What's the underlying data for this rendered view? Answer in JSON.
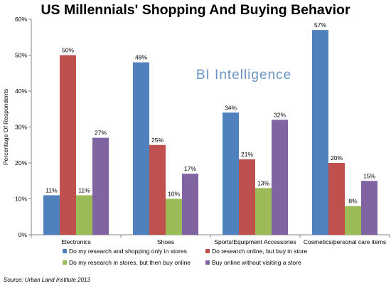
{
  "watermark": "BI Intelligence",
  "source": "Source: Urban Land Institute 2013",
  "chart_data": {
    "type": "bar",
    "title": "US Millennials' Shopping And Buying Behavior",
    "ylabel": "Percentage Of Respondents",
    "xlabel": "",
    "ylim": [
      0,
      60
    ],
    "yticks": [
      "0%",
      "10%",
      "20%",
      "30%",
      "40%",
      "50%",
      "60%"
    ],
    "grid": false,
    "legend_position": "bottom",
    "categories": [
      "Electronics",
      "Shoes",
      "Sports/Equipment Accessories",
      "Cosmetics/personal care items"
    ],
    "series": [
      {
        "name": "Do my research and shopping only in stores",
        "color": "#4F81BD",
        "values": [
          11,
          48,
          34,
          57
        ],
        "labels": [
          "11%",
          "48%",
          "34%",
          "57%"
        ]
      },
      {
        "name": "Do research online, but buy in store",
        "color": "#C0504D",
        "values": [
          50,
          25,
          21,
          20
        ],
        "labels": [
          "50%",
          "25%",
          "21%",
          "20%"
        ]
      },
      {
        "name": "Do my research in stores, but then buy online",
        "color": "#9BBB59",
        "values": [
          11,
          10,
          13,
          8
        ],
        "labels": [
          "11%",
          "10%",
          "13%",
          "8%"
        ]
      },
      {
        "name": "Buy online without visiting a store",
        "color": "#8064A2",
        "values": [
          27,
          17,
          32,
          15
        ],
        "labels": [
          "27%",
          "17%",
          "32%",
          "15%"
        ]
      }
    ]
  }
}
